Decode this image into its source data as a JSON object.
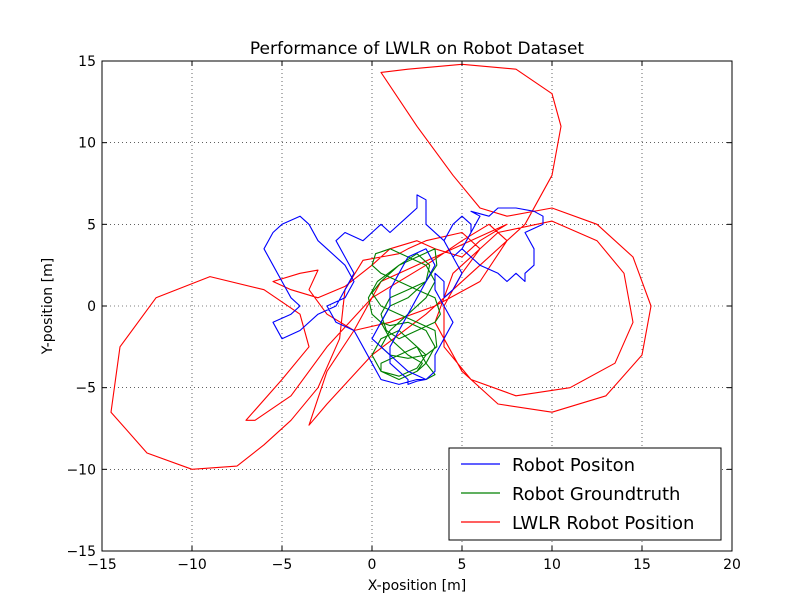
{
  "chart_data": {
    "type": "line",
    "title": "Performance of LWLR on Robot Dataset",
    "xlabel": "X-position [m]",
    "ylabel": "Y-position [m]",
    "xlim": [
      -15,
      20
    ],
    "ylim": [
      -15,
      15
    ],
    "xticks": [
      -15,
      -10,
      -5,
      0,
      5,
      10,
      15,
      20
    ],
    "yticks": [
      -15,
      -10,
      -5,
      0,
      5,
      10,
      15
    ],
    "xtick_labels": [
      "−15",
      "−10",
      "−5",
      "0",
      "5",
      "10",
      "15",
      "20"
    ],
    "ytick_labels": [
      "−15",
      "−10",
      "−5",
      "0",
      "5",
      "10",
      "15"
    ],
    "grid": true,
    "legend_position": "lower-right",
    "series": [
      {
        "name": "Robot Positon",
        "color": "#0000ff",
        "x": [
          3.0,
          2.5,
          1.5,
          0.5,
          0.0,
          -0.5,
          -1.0,
          -2.0,
          -2.5,
          -1.5,
          -1.0,
          -1.5,
          -2.5,
          -3.0,
          -3.5,
          -4.0,
          -5.0,
          -5.5,
          -6.0,
          -5.5,
          -5.0,
          -4.5,
          -4.0,
          -4.5,
          -5.5,
          -5.0,
          -4.0,
          -3.0,
          -2.0,
          -1.5,
          -1.0,
          -1.5,
          -2.0,
          -1.5,
          -0.5,
          0.0,
          0.5,
          1.0,
          2.0,
          2.5,
          2.5,
          3.0,
          3.0,
          4.0,
          4.5,
          5.0,
          5.5,
          6.0,
          5.5,
          6.5,
          7.0,
          8.0,
          9.0,
          9.5,
          9.5,
          8.5,
          9.0,
          9.0,
          8.5,
          8.5,
          8.0,
          7.5,
          7.0,
          6.0,
          5.5,
          5.0,
          5.5,
          5.5,
          5.0,
          4.5,
          4.0,
          4.5,
          5.0,
          4.5,
          4.0,
          4.0,
          3.5,
          3.5,
          4.0,
          4.5,
          4.0,
          3.5,
          3.5,
          3.0,
          2.0,
          1.0,
          0.0,
          0.5,
          1.0,
          1.0,
          1.5,
          2.0,
          3.0,
          3.5,
          3.0,
          2.5,
          2.0,
          1.5,
          1.0,
          1.0,
          1.5,
          2.0,
          2.0,
          2.5,
          3.0
        ],
        "y": [
          -4.5,
          -4.5,
          -4.8,
          -4.5,
          -3.5,
          -2.5,
          -1.5,
          -1.0,
          0.0,
          0.5,
          1.5,
          2.5,
          3.5,
          4.0,
          5.0,
          5.5,
          5.0,
          4.5,
          3.5,
          2.5,
          1.5,
          0.5,
          0.0,
          -0.5,
          -1.0,
          -2.0,
          -1.5,
          -0.5,
          0.0,
          1.0,
          2.0,
          3.0,
          4.0,
          4.5,
          4.0,
          4.5,
          5.0,
          4.5,
          5.5,
          6.0,
          6.8,
          6.5,
          5.0,
          4.0,
          3.0,
          3.5,
          4.5,
          5.5,
          5.8,
          5.5,
          6.0,
          6.0,
          5.8,
          5.5,
          5.0,
          4.5,
          3.5,
          2.5,
          2.0,
          1.5,
          2.0,
          1.5,
          2.0,
          2.5,
          3.0,
          3.5,
          4.5,
          5.0,
          5.5,
          5.0,
          4.0,
          3.0,
          2.0,
          1.0,
          0.5,
          1.5,
          2.0,
          1.0,
          0.0,
          -1.0,
          -2.0,
          -3.0,
          -4.0,
          -4.5,
          -4.0,
          -3.0,
          -2.0,
          -1.0,
          0.0,
          1.0,
          2.0,
          3.0,
          3.5,
          2.5,
          1.5,
          0.5,
          -0.5,
          -1.5,
          -2.5,
          -3.5,
          -4.0,
          -4.5,
          -4.8,
          -4.6,
          -4.5
        ]
      },
      {
        "name": "Robot Groundtruth",
        "color": "#008000",
        "x": [
          1.5,
          2.5,
          3.0,
          3.5,
          3.0,
          2.0,
          1.0,
          0.5,
          0.0,
          -0.2,
          0.3,
          1.5,
          2.5,
          3.5,
          3.6,
          3.0,
          2.0,
          1.0,
          0.5,
          0.8,
          1.5,
          2.5,
          3.5,
          3.8,
          3.5,
          2.5,
          1.5,
          0.5,
          0.0,
          0.2,
          1.0,
          2.0,
          3.0,
          3.5,
          3.0,
          2.0,
          1.0,
          0.5,
          1.0,
          2.0,
          3.0,
          3.6,
          3.5,
          2.5,
          1.5,
          0.5,
          0.0,
          0.5,
          1.5,
          2.5,
          3.2,
          3.0,
          2.0,
          1.0,
          0.5,
          1.0,
          2.0,
          2.8,
          2.5,
          1.5,
          0.5,
          0.5,
          1.5,
          2.5,
          3.0,
          2.5,
          1.5,
          0.5,
          0.0,
          0.5,
          1.5,
          2.5,
          3.0,
          3.5,
          3.0
        ],
        "y": [
          -4.5,
          -4.0,
          -3.5,
          -2.5,
          -1.5,
          -1.0,
          -1.2,
          -1.0,
          -0.5,
          0.5,
          1.5,
          2.5,
          3.0,
          3.5,
          2.5,
          1.5,
          1.0,
          0.5,
          -0.5,
          -1.5,
          -2.0,
          -1.5,
          -1.0,
          -0.5,
          0.5,
          1.0,
          1.5,
          2.0,
          2.5,
          3.2,
          3.5,
          3.0,
          2.5,
          1.5,
          0.5,
          -0.5,
          -1.5,
          -2.5,
          -3.0,
          -3.2,
          -3.0,
          -2.5,
          -1.5,
          -1.0,
          -0.5,
          0.0,
          0.8,
          1.5,
          2.5,
          3.2,
          2.5,
          1.5,
          0.5,
          0.0,
          -1.0,
          -2.0,
          -3.0,
          -3.5,
          -4.0,
          -4.5,
          -4.0,
          -3.5,
          -3.0,
          -2.5,
          -3.0,
          -3.8,
          -4.3,
          -4.0,
          -3.0,
          -2.0,
          -1.5,
          -2.5,
          -3.5,
          -4.2,
          -4.5
        ]
      },
      {
        "name": "LWLR Robot Position",
        "color": "#ff0000",
        "x": [
          -7.5,
          -10.0,
          -12.5,
          -14.5,
          -14.0,
          -12.0,
          -9.0,
          -6.0,
          -4.0,
          -3.5,
          -5.0,
          -7.0,
          -6.5,
          -4.5,
          -2.5,
          0.0,
          3.0,
          5.0,
          6.5,
          7.5,
          6.0,
          3.5,
          1.0,
          -1.0,
          -2.5,
          -3.5,
          -3.0,
          -4.0,
          -5.5,
          -5.5,
          -4.5,
          -3.0,
          -1.5,
          0.0,
          1.0,
          2.5,
          3.5,
          5.0,
          6.0,
          7.5,
          4.5,
          0.5,
          -1.0,
          -2.5,
          -3.5,
          -2.5,
          0.0,
          3.0,
          6.0,
          8.5,
          10.0,
          10.5,
          10.0,
          8.0,
          5.0,
          2.0,
          0.5,
          2.5,
          4.5,
          6.0,
          7.5,
          10.0,
          12.5,
          14.5,
          15.5,
          15.0,
          13.0,
          10.0,
          7.0,
          5.0,
          3.5,
          4.5,
          7.0,
          10.0,
          12.5,
          14.0,
          14.5,
          13.5,
          11.0,
          8.0,
          5.5,
          4.0,
          4.0,
          5.0,
          6.0,
          5.0,
          3.0,
          2.0,
          1.5,
          -0.5,
          -1.5,
          -1.8,
          -3.0,
          -4.5,
          -6.0,
          -7.5
        ],
        "y": [
          -9.8,
          -10.0,
          -9.0,
          -6.5,
          -2.5,
          0.5,
          1.8,
          1.0,
          -0.5,
          -2.5,
          -4.5,
          -7.0,
          -7.0,
          -5.5,
          -2.5,
          0.5,
          2.5,
          4.0,
          5.0,
          4.0,
          1.5,
          0.0,
          -1.0,
          -1.5,
          -0.5,
          1.0,
          2.2,
          2.0,
          1.5,
          1.5,
          1.0,
          0.5,
          1.2,
          2.5,
          3.5,
          4.0,
          3.5,
          3.0,
          4.0,
          5.0,
          3.5,
          1.5,
          -1.5,
          -4.0,
          -7.3,
          -6.0,
          -3.0,
          -0.5,
          2.5,
          5.0,
          8.0,
          11.0,
          13.0,
          14.5,
          14.8,
          14.5,
          14.3,
          11.0,
          8.0,
          6.0,
          5.5,
          6.0,
          5.0,
          3.0,
          0.0,
          -3.0,
          -5.5,
          -6.5,
          -6.0,
          -4.0,
          -1.0,
          2.0,
          4.5,
          5.2,
          4.0,
          2.0,
          -1.0,
          -3.5,
          -5.0,
          -5.5,
          -4.5,
          -2.5,
          0.0,
          2.0,
          3.5,
          4.5,
          4.0,
          3.5,
          3.2,
          2.8,
          1.0,
          -2.0,
          -5.0,
          -7.0,
          -8.5,
          -9.8
        ]
      }
    ]
  }
}
